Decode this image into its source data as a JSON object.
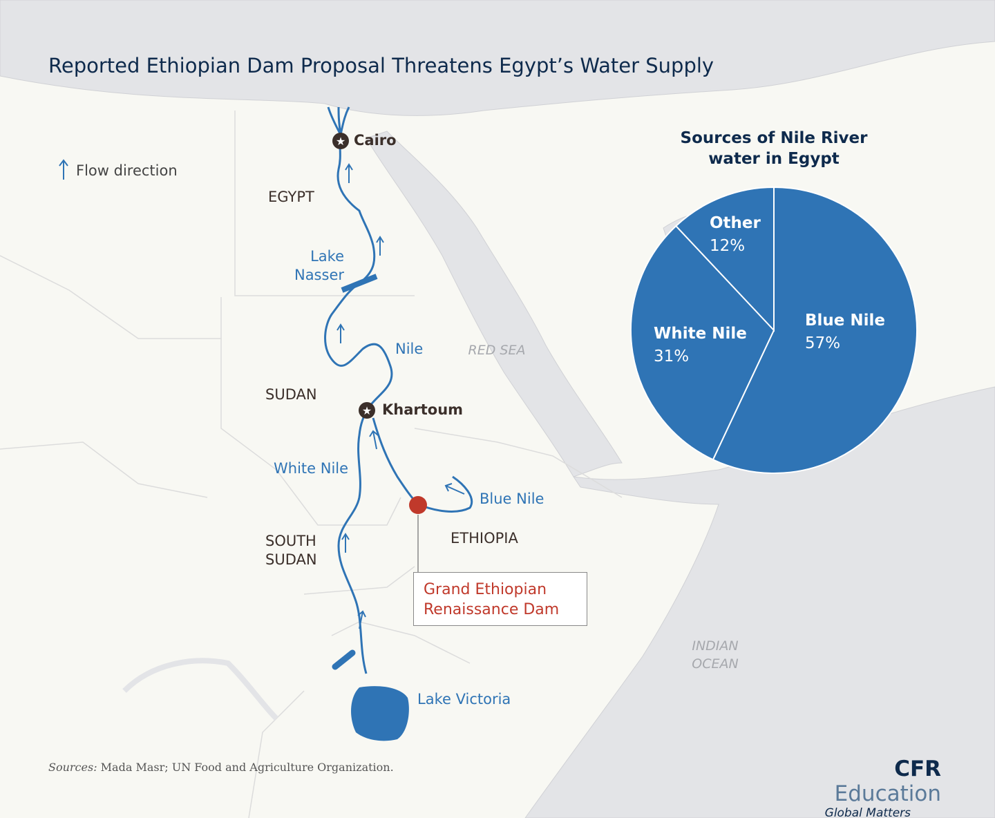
{
  "title": "Reported Ethiopian Dam Proposal Threatens Egypt’s Water Supply",
  "legend": "Flow direction",
  "places": {
    "cairo": "Cairo",
    "egypt": "EGYPT",
    "lake_nasser": "Lake Nasser",
    "nile": "Nile",
    "sudan": "SUDAN",
    "khartoum": "Khartoum",
    "white_nile": "White Nile",
    "blue_nile": "Blue Nile",
    "south_sudan": "SOUTH SUDAN",
    "ethiopia": "ETHIOPIA",
    "red_sea": "RED SEA",
    "indian_ocean": "INDIAN OCEAN",
    "lake_victoria": "Lake Victoria",
    "dam": "Grand Ethiopian Renaissance Dam"
  },
  "chart_data": {
    "type": "pie",
    "title": "Sources of Nile River water in Egypt",
    "categories": [
      "Blue Nile",
      "White Nile",
      "Other"
    ],
    "values": [
      57,
      31,
      12
    ],
    "value_labels": [
      "57%",
      "31%",
      "12%"
    ],
    "color": "#2f74b5"
  },
  "sources": {
    "label": "Sources:",
    "text": "Mada Masr; UN Food and Agriculture Organization."
  },
  "brand": {
    "name": "CFR",
    "unit": "Education",
    "tagline": "Global Matters"
  }
}
